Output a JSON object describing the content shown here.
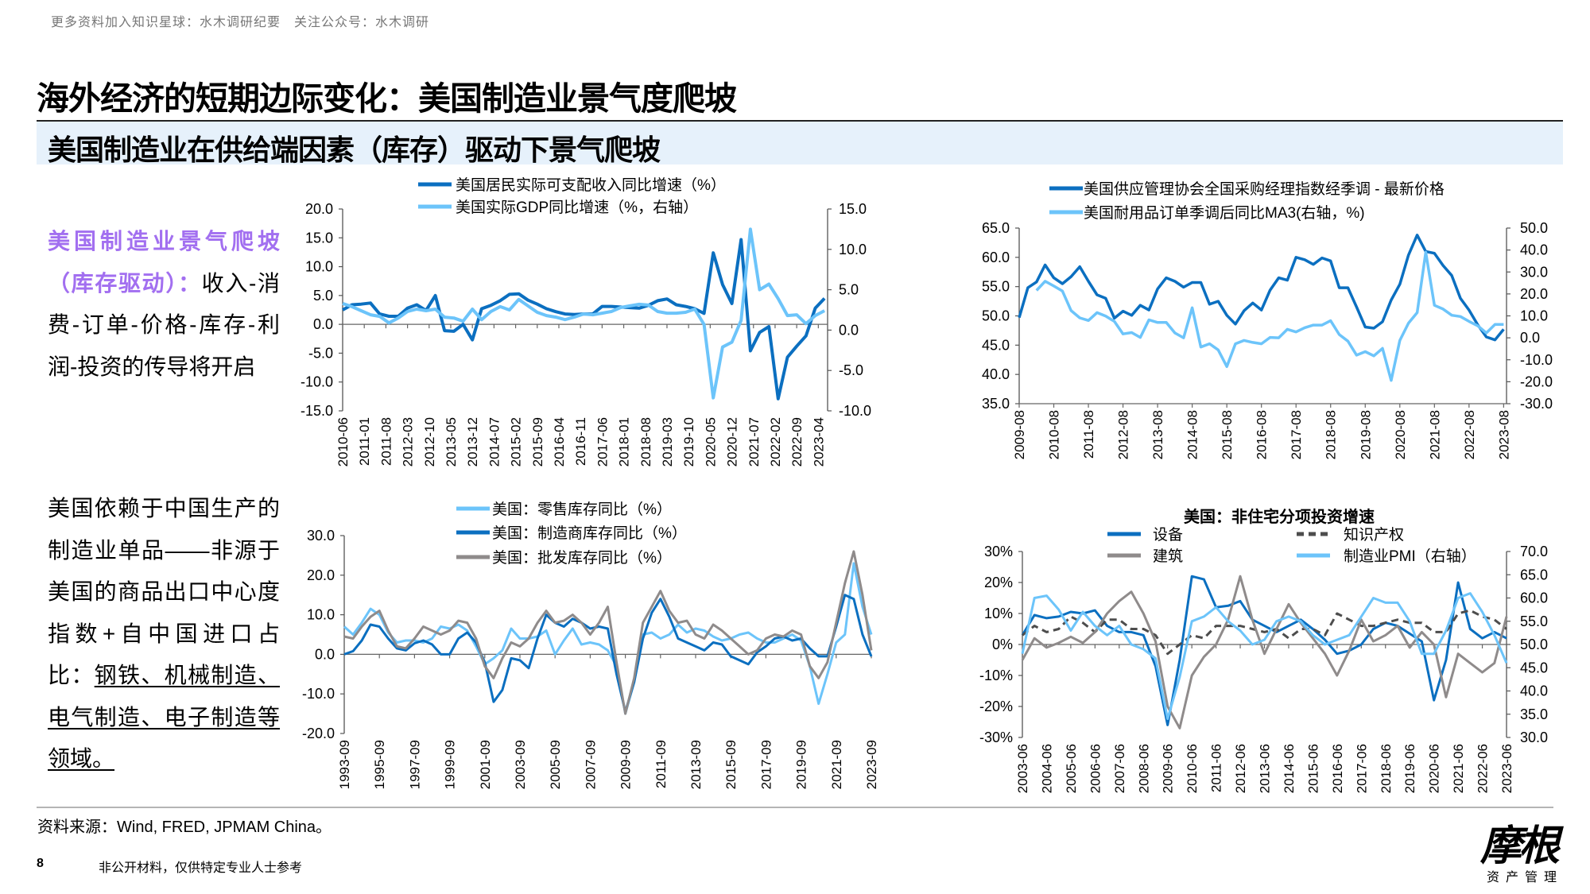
{
  "watermark": "更多资料加入知识星球：水木调研纪要　关注公众号：水木调研",
  "page_title": "海外经济的短期边际变化：美国制造业景气度爬坡",
  "subtitle": "美国制造业在供给端因素（库存）驱动下景气爬坡",
  "left_text": {
    "p1_highlight": "美国制造业景气爬坡（库存驱动）：",
    "p1_body": "收入-消费-订单-价格-库存-利润-投资的传导将开启",
    "p2_body": "美国依赖于中国生产的制造业单品——非源于美国的商品出口中心度指数+自中国进口占比：",
    "p2_underlined": "钢铁、机械制造、电气制造、电子制造等领域。"
  },
  "colors": {
    "dark_blue": "#0b6fc0",
    "light_blue": "#6cc4fa",
    "gray": "#8f8b8b",
    "dash_gray": "#4d4d4d",
    "purple": "#a26ff0",
    "subtitle_band": "#e6f1fb"
  },
  "chart_data": [
    {
      "type": "line",
      "title": "",
      "xlim": [
        "2010-06",
        "2023-07"
      ],
      "xticks": [
        "2010-06",
        "2011-01",
        "2011-08",
        "2012-03",
        "2012-10",
        "2013-05",
        "2013-12",
        "2014-07",
        "2015-02",
        "2015-09",
        "2016-04",
        "2016-11",
        "2017-06",
        "2018-01",
        "2018-08",
        "2019-03",
        "2019-10",
        "2020-05",
        "2020-12",
        "2021-07",
        "2022-02",
        "2022-09",
        "2023-04"
      ],
      "ylim_left": [
        -15,
        20
      ],
      "yticks_left": [
        "20.0",
        "15.0",
        "10.0",
        "5.0",
        "0.0",
        "-5.0",
        "-10.0",
        "-15.0"
      ],
      "ylim_right": [
        -10,
        15
      ],
      "yticks_right": [
        "15.0",
        "10.0",
        "5.0",
        "0.0",
        "-5.0",
        "-10.0"
      ],
      "x": [
        "2010-06",
        "2010-09",
        "2010-12",
        "2011-03",
        "2011-06",
        "2011-09",
        "2011-12",
        "2012-03",
        "2012-06",
        "2012-09",
        "2012-12",
        "2013-03",
        "2013-06",
        "2013-09",
        "2013-12",
        "2014-03",
        "2014-06",
        "2014-09",
        "2014-12",
        "2015-03",
        "2015-06",
        "2015-09",
        "2015-12",
        "2016-03",
        "2016-06",
        "2016-09",
        "2016-12",
        "2017-03",
        "2017-06",
        "2017-09",
        "2017-12",
        "2018-03",
        "2018-06",
        "2018-09",
        "2018-12",
        "2019-03",
        "2019-06",
        "2019-09",
        "2019-12",
        "2020-03",
        "2020-06",
        "2020-09",
        "2020-12",
        "2021-03",
        "2021-06",
        "2021-09",
        "2021-12",
        "2022-03",
        "2022-06",
        "2022-09",
        "2022-12",
        "2023-03",
        "2023-06"
      ],
      "series": [
        {
          "name": "美国居民实际可支配收入同比增速（%）",
          "axis": "left",
          "color": "#0b6fc0",
          "values": [
            2.5,
            3.4,
            3.5,
            3.7,
            1.8,
            1.4,
            1.4,
            2.8,
            3.4,
            2.4,
            5.0,
            -1.1,
            -1.2,
            0.0,
            -2.7,
            2.7,
            3.3,
            4.1,
            5.2,
            5.3,
            4.2,
            3.5,
            2.7,
            2.2,
            1.8,
            1.7,
            1.8,
            1.8,
            3.1,
            3.1,
            3.0,
            2.9,
            2.8,
            3.3,
            4.1,
            4.4,
            3.4,
            3.1,
            2.7,
            1.9,
            12.4,
            6.9,
            3.6,
            14.7,
            -4.6,
            -1.4,
            -0.4,
            -12.9,
            -5.7,
            -3.8,
            -2.0,
            2.8,
            4.5
          ]
        },
        {
          "name": "美国实际GDP同比增速（%，右轴）",
          "axis": "right",
          "color": "#6cc4fa",
          "values": [
            3.3,
            2.9,
            2.4,
            1.9,
            1.7,
            0.9,
            1.5,
            2.3,
            2.6,
            2.4,
            2.6,
            1.6,
            1.5,
            1.1,
            2.6,
            1.3,
            2.3,
            2.9,
            2.5,
            3.8,
            3.0,
            2.2,
            1.8,
            1.6,
            1.3,
            1.6,
            2.0,
            1.9,
            2.1,
            2.3,
            2.8,
            3.0,
            3.2,
            3.1,
            2.3,
            2.1,
            2.1,
            2.2,
            2.6,
            0.7,
            -8.4,
            -2.1,
            -1.5,
            1.2,
            12.5,
            5.0,
            5.7,
            3.9,
            1.8,
            1.9,
            0.8,
            1.8,
            2.4
          ]
        }
      ]
    },
    {
      "type": "line",
      "title": "",
      "xlim": [
        "2009-08",
        "2023-09"
      ],
      "xticks": [
        "2009-08",
        "2010-08",
        "2011-08",
        "2012-08",
        "2013-08",
        "2014-08",
        "2015-08",
        "2016-08",
        "2017-08",
        "2018-08",
        "2019-08",
        "2020-08",
        "2021-08",
        "2022-08",
        "2023-08"
      ],
      "ylim_left": [
        35,
        65
      ],
      "yticks_left": [
        "65.0",
        "60.0",
        "55.0",
        "50.0",
        "45.0",
        "40.0",
        "35.0"
      ],
      "ylim_right": [
        -30,
        50
      ],
      "yticks_right": [
        "50.0",
        "40.0",
        "30.0",
        "20.0",
        "10.0",
        "0.0",
        "-10.0",
        "-20.0",
        "-30.0"
      ],
      "x": [
        "2009-08",
        "2009-11",
        "2010-02",
        "2010-05",
        "2010-08",
        "2010-11",
        "2011-02",
        "2011-05",
        "2011-08",
        "2011-11",
        "2012-02",
        "2012-05",
        "2012-08",
        "2012-11",
        "2013-02",
        "2013-05",
        "2013-08",
        "2013-11",
        "2014-02",
        "2014-05",
        "2014-08",
        "2014-11",
        "2015-02",
        "2015-05",
        "2015-08",
        "2015-11",
        "2016-02",
        "2016-05",
        "2016-08",
        "2016-11",
        "2017-02",
        "2017-05",
        "2017-08",
        "2017-11",
        "2018-02",
        "2018-05",
        "2018-08",
        "2018-11",
        "2019-02",
        "2019-05",
        "2019-08",
        "2019-11",
        "2020-02",
        "2020-05",
        "2020-08",
        "2020-11",
        "2021-02",
        "2021-05",
        "2021-08",
        "2021-11",
        "2022-02",
        "2022-05",
        "2022-08",
        "2022-11",
        "2023-02",
        "2023-05",
        "2023-08"
      ],
      "series": [
        {
          "name": "美国供应管理协会全国采购经理指数经季调 - 最新价格",
          "axis": "left",
          "color": "#0b6fc0",
          "values": [
            49.7,
            54.8,
            55.8,
            58.7,
            56.5,
            55.5,
            56.7,
            58.4,
            55.9,
            53.6,
            53.0,
            49.6,
            50.8,
            50.1,
            51.8,
            51.0,
            54.6,
            56.5,
            55.9,
            54.9,
            55.7,
            55.7,
            52.0,
            52.5,
            50.1,
            48.6,
            50.9,
            52.2,
            51.0,
            54.4,
            56.5,
            56.1,
            60.0,
            59.6,
            58.8,
            59.9,
            59.4,
            54.8,
            54.8,
            51.5,
            48.1,
            47.9,
            49.0,
            52.7,
            55.4,
            60.4,
            63.8,
            61.0,
            60.7,
            58.6,
            56.9,
            53.0,
            51.0,
            48.5,
            46.4,
            45.9,
            47.7
          ]
        },
        {
          "name": "美国耐用品订单季调后同比MA3(右轴，%)",
          "axis": "right",
          "color": "#6cc4fa",
          "values": [
            null,
            null,
            21.6,
            25.8,
            23.6,
            21.3,
            12.4,
            9.1,
            7.9,
            11.5,
            9.9,
            7.5,
            1.8,
            2.4,
            0.2,
            8.2,
            7.0,
            7.0,
            2.2,
            0.0,
            13.7,
            -4.2,
            -2.7,
            -5.5,
            -13.1,
            -2.7,
            -1.2,
            -2.1,
            -2.7,
            0.2,
            0.0,
            3.9,
            2.7,
            4.6,
            5.8,
            5.8,
            7.8,
            1.5,
            -1.5,
            -7.9,
            -6.3,
            -8.2,
            -4.8,
            -19.4,
            -1.2,
            6.7,
            11.5,
            39.0,
            14.8,
            13.1,
            10.3,
            9.7,
            7.5,
            5.5,
            2.2,
            6.1,
            6.1
          ]
        }
      ]
    },
    {
      "type": "line",
      "title": "",
      "xlim": [
        "1993-09",
        "2023-09"
      ],
      "xticks": [
        "1993-09",
        "1995-09",
        "1997-09",
        "1999-09",
        "2001-09",
        "2003-09",
        "2005-09",
        "2007-09",
        "2009-09",
        "2011-09",
        "2013-09",
        "2015-09",
        "2017-09",
        "2019-09",
        "2021-09",
        "2023-09"
      ],
      "ylim_left": [
        -20,
        30
      ],
      "yticks_left": [
        "30.0",
        "20.0",
        "10.0",
        "0.0",
        "-10.0",
        "-20.0"
      ],
      "x": [
        "1993-09",
        "1994-03",
        "1994-09",
        "1995-03",
        "1995-09",
        "1996-03",
        "1996-09",
        "1997-03",
        "1997-09",
        "1998-03",
        "1998-09",
        "1999-03",
        "1999-09",
        "2000-03",
        "2000-09",
        "2001-03",
        "2001-09",
        "2002-03",
        "2002-09",
        "2003-03",
        "2003-09",
        "2004-03",
        "2004-09",
        "2005-03",
        "2005-09",
        "2006-03",
        "2006-09",
        "2007-03",
        "2007-09",
        "2008-03",
        "2008-09",
        "2009-03",
        "2009-09",
        "2010-03",
        "2010-09",
        "2011-03",
        "2011-09",
        "2012-03",
        "2012-09",
        "2013-03",
        "2013-09",
        "2014-03",
        "2014-09",
        "2015-03",
        "2015-09",
        "2016-03",
        "2016-09",
        "2017-03",
        "2017-09",
        "2018-03",
        "2018-09",
        "2019-03",
        "2019-09",
        "2020-03",
        "2020-09",
        "2021-03",
        "2021-09",
        "2022-03",
        "2022-09",
        "2023-03",
        "2023-09"
      ],
      "series": [
        {
          "name": "美国：零售库存同比（%）",
          "axis": "left",
          "color": "#6cc4fa",
          "values": [
            7.0,
            5.0,
            8.0,
            11.5,
            10.0,
            5.5,
            3.0,
            3.5,
            3.5,
            3.0,
            4.0,
            7.0,
            6.5,
            7.5,
            6.0,
            2.0,
            -2.5,
            -1.0,
            1.0,
            6.5,
            4.0,
            4.0,
            4.5,
            6.0,
            0.0,
            3.5,
            6.5,
            2.5,
            3.0,
            2.5,
            1.0,
            -3.0,
            -15.0,
            -7.0,
            5.0,
            5.5,
            4.0,
            5.0,
            7.5,
            5.5,
            6.5,
            6.0,
            4.5,
            3.5,
            4.0,
            5.0,
            5.5,
            4.0,
            3.0,
            3.0,
            4.0,
            5.0,
            3.5,
            -3.0,
            -12.5,
            -5.0,
            3.0,
            5.0,
            23.0,
            12.0,
            5.0
          ]
        },
        {
          "name": "美国：制造商库存同比（%）",
          "axis": "left",
          "color": "#0b6fc0",
          "values": [
            0.0,
            0.8,
            3.5,
            7.5,
            7.0,
            4.0,
            1.5,
            1.0,
            2.8,
            3.5,
            2.5,
            0.0,
            0.0,
            4.0,
            5.5,
            3.0,
            -2.0,
            -12.0,
            -9.0,
            -1.0,
            -1.5,
            -3.5,
            4.0,
            10.0,
            8.0,
            7.0,
            9.0,
            8.0,
            6.5,
            7.0,
            6.5,
            -5.0,
            -14.5,
            -7.0,
            4.0,
            10.5,
            14.0,
            9.5,
            4.0,
            3.0,
            2.0,
            1.0,
            3.0,
            2.5,
            -0.5,
            -1.5,
            -2.5,
            0.5,
            2.0,
            4.0,
            4.5,
            3.5,
            4.0,
            1.5,
            -0.5,
            -0.5,
            7.0,
            15.0,
            14.0,
            5.0,
            -0.5
          ]
        },
        {
          "name": "美国：批发库存同比（%）",
          "axis": "left",
          "color": "#8f8b8b",
          "values": [
            4.5,
            4.0,
            7.0,
            9.5,
            11.0,
            6.0,
            2.0,
            1.5,
            4.0,
            7.0,
            6.0,
            5.0,
            6.0,
            8.5,
            8.0,
            4.0,
            -3.0,
            -6.0,
            -1.0,
            3.0,
            2.0,
            4.0,
            8.0,
            11.0,
            8.0,
            8.5,
            10.0,
            8.0,
            5.0,
            8.0,
            12.0,
            -2.0,
            -15.0,
            -6.0,
            8.0,
            12.0,
            16.0,
            11.0,
            8.0,
            8.5,
            5.0,
            4.0,
            7.5,
            6.0,
            4.0,
            2.0,
            0.0,
            1.0,
            4.0,
            5.0,
            4.5,
            6.0,
            5.0,
            -3.0,
            -6.0,
            -2.0,
            8.0,
            18.0,
            26.0,
            15.0,
            1.0
          ]
        }
      ]
    },
    {
      "type": "line",
      "title": "美国：非住宅分项投资增速",
      "xlim": [
        "2003-06",
        "2023-06"
      ],
      "xticks": [
        "2003-06",
        "2004-06",
        "2005-06",
        "2006-06",
        "2007-06",
        "2008-06",
        "2009-06",
        "2010-06",
        "2011-06",
        "2012-06",
        "2013-06",
        "2014-06",
        "2015-06",
        "2016-06",
        "2017-06",
        "2018-06",
        "2019-06",
        "2020-06",
        "2021-06",
        "2022-06",
        "2023-06"
      ],
      "ylim_left": [
        -30,
        30
      ],
      "yticks_left": [
        "30%",
        "20%",
        "10%",
        "0%",
        "-10%",
        "-20%",
        "-30%"
      ],
      "ylim_right": [
        30,
        70
      ],
      "yticks_right": [
        "70.0",
        "65.0",
        "60.0",
        "55.0",
        "50.0",
        "45.0",
        "40.0",
        "35.0",
        "30.0"
      ],
      "x": [
        "2003-06",
        "2003-12",
        "2004-06",
        "2004-12",
        "2005-06",
        "2005-12",
        "2006-06",
        "2006-12",
        "2007-06",
        "2007-12",
        "2008-06",
        "2008-12",
        "2009-06",
        "2009-12",
        "2010-06",
        "2010-12",
        "2011-06",
        "2011-12",
        "2012-06",
        "2012-12",
        "2013-06",
        "2013-12",
        "2014-06",
        "2014-12",
        "2015-06",
        "2015-12",
        "2016-06",
        "2016-12",
        "2017-06",
        "2017-12",
        "2018-06",
        "2018-12",
        "2019-06",
        "2019-12",
        "2020-06",
        "2020-12",
        "2021-06",
        "2021-12",
        "2022-06",
        "2022-12",
        "2023-06"
      ],
      "series": [
        {
          "name": "设备",
          "axis": "left",
          "color": "#0b6fc0",
          "dash": false,
          "values": [
            3,
            9.5,
            8.5,
            9,
            10.5,
            10,
            11,
            6,
            4,
            4,
            3,
            -7,
            -26,
            -5,
            22,
            21,
            12,
            12.5,
            14,
            8,
            6,
            4,
            6,
            8,
            5,
            1.5,
            -3,
            -2,
            0,
            5,
            7,
            6,
            3.5,
            1,
            -18,
            -5,
            20,
            5,
            2,
            4,
            2
          ]
        },
        {
          "name": "知识产权",
          "axis": "left",
          "color": "#4d4d4d",
          "dash": true,
          "values": [
            3,
            6,
            4,
            5,
            9,
            7,
            4,
            8,
            8,
            5,
            5,
            3,
            -3,
            0,
            3,
            2,
            6,
            6,
            6,
            5,
            4,
            5,
            2,
            5,
            5,
            3,
            10,
            8,
            6,
            6,
            7,
            8,
            7,
            7,
            4,
            4,
            10,
            11,
            9,
            8,
            5
          ]
        },
        {
          "name": "建筑",
          "axis": "left",
          "color": "#8f8b8b",
          "dash": false,
          "values": [
            -5,
            2,
            -1,
            0.5,
            2.5,
            0.5,
            4,
            10,
            14,
            17,
            10,
            1,
            -20,
            -27,
            -10,
            -4,
            0,
            8,
            22,
            8,
            -3,
            5,
            13,
            7,
            2,
            -3,
            -10,
            -2,
            8,
            1,
            3,
            6,
            -1,
            4,
            0,
            -17,
            -3,
            -6,
            -9,
            -6,
            9
          ]
        },
        {
          "name": "制造业PMI（右轴）",
          "axis": "right",
          "color": "#6cc4fa",
          "dash": false,
          "values": [
            48,
            60,
            60.5,
            57.5,
            53,
            57,
            54,
            52,
            54,
            50,
            49,
            47,
            34,
            43,
            55,
            56,
            58,
            55,
            53,
            50,
            51,
            55,
            56,
            55,
            52,
            50,
            51,
            52,
            56,
            60,
            59,
            59,
            55,
            48,
            48,
            53,
            60,
            61,
            57,
            52,
            46
          ]
        }
      ]
    }
  ],
  "footer": {
    "source": "资料来源：Wind, FRED, JPMAM China。",
    "page_number": "8",
    "disclaimer": "非公开材料，仅供特定专业人士参考",
    "logo_main": "摩根",
    "logo_sub": "资产管理"
  }
}
